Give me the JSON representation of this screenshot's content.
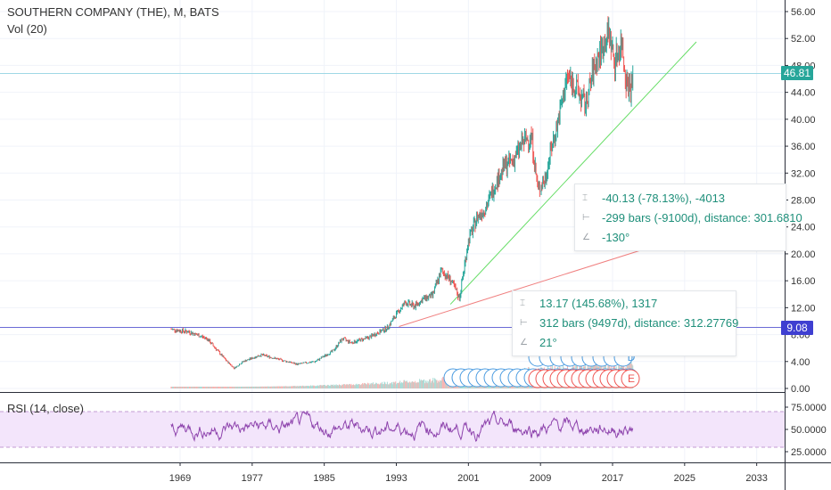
{
  "chart_data": [
    {
      "type": "candlestick",
      "title": "SOUTHERN COMPANY (THE), M, BATS",
      "indicator_label": "Vol (20)",
      "x_ticks": [
        "1969",
        "1977",
        "1985",
        "1993",
        "2001",
        "2009",
        "2017",
        "2025",
        "2033"
      ],
      "y_ticks": [
        "56.00",
        "52.00",
        "48.00",
        "44.00",
        "40.00",
        "36.00",
        "32.00",
        "28.00",
        "24.00",
        "20.00",
        "16.00",
        "12.00",
        "8.00",
        "4.00",
        "0.00"
      ],
      "ylim": [
        0,
        57
      ],
      "price_series": [
        {
          "year": 1968.0,
          "close": 8.8
        },
        {
          "year": 1970.0,
          "close": 8.4
        },
        {
          "year": 1972.0,
          "close": 7.4
        },
        {
          "year": 1974.0,
          "close": 4.3
        },
        {
          "year": 1975.0,
          "close": 3.0
        },
        {
          "year": 1976.0,
          "close": 4.0
        },
        {
          "year": 1978.0,
          "close": 5.0
        },
        {
          "year": 1980.0,
          "close": 4.3
        },
        {
          "year": 1982.0,
          "close": 3.6
        },
        {
          "year": 1984.0,
          "close": 4.0
        },
        {
          "year": 1986.0,
          "close": 5.6
        },
        {
          "year": 1987.0,
          "close": 7.4
        },
        {
          "year": 1988.0,
          "close": 6.8
        },
        {
          "year": 1990.0,
          "close": 7.6
        },
        {
          "year": 1992.0,
          "close": 9.0
        },
        {
          "year": 1993.0,
          "close": 11.0
        },
        {
          "year": 1994.0,
          "close": 12.8
        },
        {
          "year": 1995.0,
          "close": 12.2
        },
        {
          "year": 1996.0,
          "close": 13.3
        },
        {
          "year": 1997.0,
          "close": 13.8
        },
        {
          "year": 1998.0,
          "close": 17.5
        },
        {
          "year": 1999.0,
          "close": 16.2
        },
        {
          "year": 2000.0,
          "close": 13.4
        },
        {
          "year": 2001.0,
          "close": 22.0
        },
        {
          "year": 2002.0,
          "close": 25.5
        },
        {
          "year": 2003.0,
          "close": 27.0
        },
        {
          "year": 2004.0,
          "close": 30.5
        },
        {
          "year": 2005.0,
          "close": 33.0
        },
        {
          "year": 2006.0,
          "close": 34.0
        },
        {
          "year": 2007.0,
          "close": 36.5
        },
        {
          "year": 2008.0,
          "close": 37.5
        },
        {
          "year": 2008.7,
          "close": 29.5
        },
        {
          "year": 2009.5,
          "close": 31.0
        },
        {
          "year": 2010.0,
          "close": 34.5
        },
        {
          "year": 2011.0,
          "close": 40.0
        },
        {
          "year": 2012.0,
          "close": 46.5
        },
        {
          "year": 2013.0,
          "close": 44.5
        },
        {
          "year": 2014.0,
          "close": 42.0
        },
        {
          "year": 2015.0,
          "close": 48.0
        },
        {
          "year": 2016.0,
          "close": 51.0
        },
        {
          "year": 2016.6,
          "close": 53.0
        },
        {
          "year": 2017.2,
          "close": 48.5
        },
        {
          "year": 2018.0,
          "close": 51.5
        },
        {
          "year": 2018.5,
          "close": 46.0
        },
        {
          "year": 2019.0,
          "close": 44.5
        },
        {
          "year": 2019.3,
          "close": 46.81
        }
      ],
      "horizontal_lines": [
        {
          "label": "46.81",
          "value": 46.81,
          "color": "#9fd8e5"
        },
        {
          "label": "9.08",
          "value": 9.08,
          "color": "#6b6bd6"
        }
      ],
      "trend_lines": [
        {
          "color": "#66dd66",
          "from": {
            "year": 1999.0,
            "value": 12.5
          },
          "to": {
            "year": 2026.3,
            "value": 51.5
          }
        },
        {
          "color": "#f08080",
          "from": {
            "year": 1993.3,
            "value": 9.2
          },
          "to": {
            "year": 2024.8,
            "value": 22.5
          }
        }
      ],
      "measure_boxes": [
        {
          "lines": [
            "-40.13 (-78.13%), -4013",
            "-299 bars (-9100d), distance: 301.6810",
            "-130°"
          ]
        },
        {
          "lines": [
            "13.17 (145.68%), 1317",
            "312 bars (9497d), distance: 312.27769",
            "21°"
          ]
        }
      ],
      "event_marks": [
        {
          "label": "D",
          "color": "#4a9be0"
        },
        {
          "label": "E",
          "color": "#ef5350"
        }
      ],
      "colors": {
        "up": "#26a69a",
        "down": "#ef5350",
        "volume_up": "#a7dbd5",
        "volume_down": "#f7b3b1"
      }
    },
    {
      "type": "line",
      "title": "RSI (14, close)",
      "y_ticks": [
        "75.0000",
        "50.0000",
        "25.0000"
      ],
      "ylim": [
        18,
        82
      ],
      "band": [
        30,
        70
      ],
      "color": "#8e44ad"
    }
  ]
}
